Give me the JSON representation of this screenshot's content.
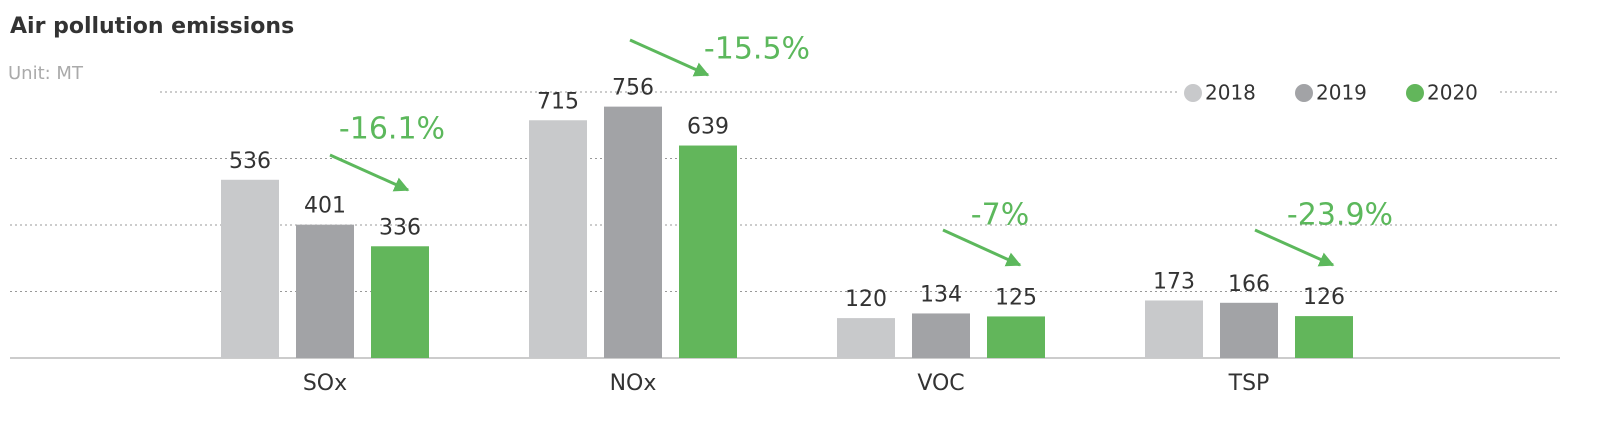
{
  "chart_data": {
    "type": "bar",
    "title": "Air pollution emissions",
    "subtitle": "Unit: MT",
    "categories": [
      "SOx",
      "NOx",
      "VOC",
      "TSP"
    ],
    "series": [
      {
        "name": "2018",
        "color": "#c8c9cb",
        "values": [
          536,
          715,
          120,
          173
        ]
      },
      {
        "name": "2019",
        "color": "#a2a3a6",
        "values": [
          401,
          756,
          134,
          166
        ]
      },
      {
        "name": "2020",
        "color": "#62b65b",
        "values": [
          336,
          639,
          125,
          126
        ]
      }
    ],
    "annotations": [
      "-16.1%",
      "-15.5%",
      "-7%",
      "-23.9%"
    ],
    "annotation_color": "#5cb85c",
    "ylim": [
      0,
      800
    ],
    "yticks": [
      0,
      200,
      400,
      600,
      800
    ],
    "grid": true,
    "legend": "top-right"
  }
}
